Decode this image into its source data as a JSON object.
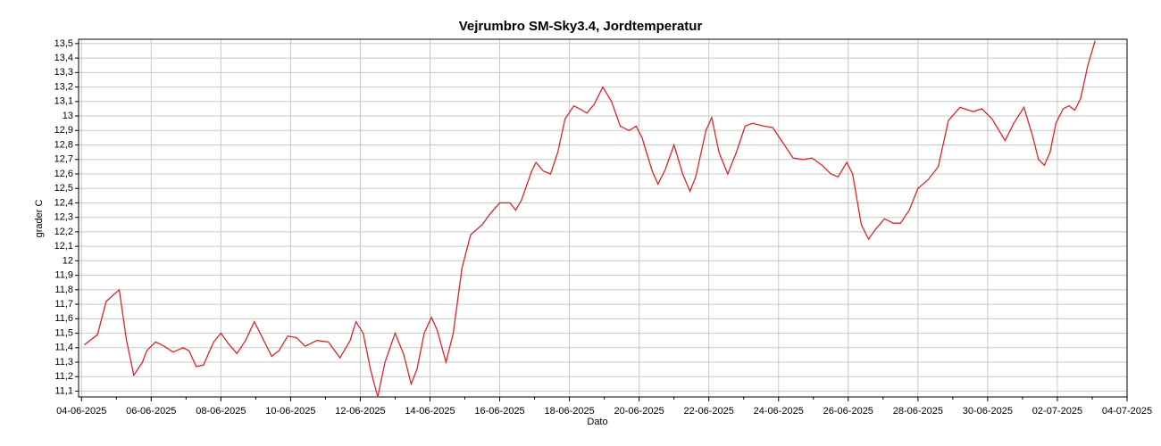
{
  "chart_data": {
    "type": "line",
    "title": "Vejrumbro SM-Sky3.4, Jordtemperatur",
    "x_label": "Dato",
    "y_label": "grader C",
    "x": [
      "2025-06-04T02:00",
      "2025-06-04T11:00",
      "2025-06-04T17:00",
      "2025-06-05T02:00",
      "2025-06-05T07:00",
      "2025-06-05T12:00",
      "2025-06-05T18:00",
      "2025-06-05T21:00",
      "2025-06-06T03:00",
      "2025-06-06T09:00",
      "2025-06-06T15:00",
      "2025-06-06T22:00",
      "2025-06-07T02:00",
      "2025-06-07T07:00",
      "2025-06-07T12:00",
      "2025-06-07T19:00",
      "2025-06-08T00:00",
      "2025-06-08T05:00",
      "2025-06-08T11:00",
      "2025-06-08T17:00",
      "2025-06-08T23:00",
      "2025-06-09T05:00",
      "2025-06-09T11:00",
      "2025-06-09T16:00",
      "2025-06-09T22:00",
      "2025-06-10T04:00",
      "2025-06-10T10:00",
      "2025-06-10T18:00",
      "2025-06-11T02:00",
      "2025-06-11T10:00",
      "2025-06-11T17:00",
      "2025-06-11T21:00",
      "2025-06-12T02:00",
      "2025-06-12T07:00",
      "2025-06-12T12:00",
      "2025-06-12T17:00",
      "2025-06-13T00:00",
      "2025-06-13T06:00",
      "2025-06-13T11:00",
      "2025-06-13T15:00",
      "2025-06-13T20:00",
      "2025-06-14T01:00",
      "2025-06-14T05:00",
      "2025-06-14T11:00",
      "2025-06-14T16:00",
      "2025-06-14T22:00",
      "2025-06-15T04:00",
      "2025-06-15T12:00",
      "2025-06-15T17:00",
      "2025-06-16T00:00",
      "2025-06-16T07:00",
      "2025-06-16T11:00",
      "2025-06-16T15:00",
      "2025-06-16T22:00",
      "2025-06-17T01:00",
      "2025-06-17T06:00",
      "2025-06-17T11:00",
      "2025-06-17T16:00",
      "2025-06-17T21:00",
      "2025-06-18T03:00",
      "2025-06-18T07:00",
      "2025-06-18T12:00",
      "2025-06-18T17:00",
      "2025-06-18T23:00",
      "2025-06-19T05:00",
      "2025-06-19T11:00",
      "2025-06-19T17:00",
      "2025-06-19T22:00",
      "2025-06-20T02:00",
      "2025-06-20T09:00",
      "2025-06-20T13:00",
      "2025-06-20T18:00",
      "2025-06-21T00:00",
      "2025-06-21T06:00",
      "2025-06-21T11:00",
      "2025-06-21T15:00",
      "2025-06-21T22:00",
      "2025-06-22T02:00",
      "2025-06-22T07:00",
      "2025-06-22T13:00",
      "2025-06-22T19:00",
      "2025-06-23T01:00",
      "2025-06-23T06:00",
      "2025-06-23T14:00",
      "2025-06-23T20:00",
      "2025-06-24T02:00",
      "2025-06-24T10:00",
      "2025-06-24T17:00",
      "2025-06-24T23:00",
      "2025-06-25T06:00",
      "2025-06-25T12:00",
      "2025-06-25T17:00",
      "2025-06-25T23:00",
      "2025-06-26T03:00",
      "2025-06-26T09:00",
      "2025-06-26T14:00",
      "2025-06-26T19:00",
      "2025-06-27T01:00",
      "2025-06-27T07:00",
      "2025-06-27T12:00",
      "2025-06-27T18:00",
      "2025-06-28T00:00",
      "2025-06-28T07:00",
      "2025-06-28T14:00",
      "2025-06-28T21:00",
      "2025-06-29T05:00",
      "2025-06-29T14:00",
      "2025-06-29T20:00",
      "2025-06-30T03:00",
      "2025-06-30T12:00",
      "2025-06-30T18:00",
      "2025-07-01T01:00",
      "2025-07-01T07:00",
      "2025-07-01T11:00",
      "2025-07-01T15:00",
      "2025-07-01T19:00",
      "2025-07-01T23:00",
      "2025-07-02T04:00",
      "2025-07-02T08:00",
      "2025-07-02T12:00",
      "2025-07-02T16:00",
      "2025-07-02T21:00",
      "2025-07-03T02:00"
    ],
    "series": [
      {
        "color": "#d9262b",
        "values": [
          11.42,
          11.49,
          11.72,
          11.8,
          11.45,
          11.21,
          11.3,
          11.38,
          11.44,
          11.41,
          11.37,
          11.4,
          11.38,
          11.27,
          11.28,
          11.44,
          11.5,
          11.43,
          11.36,
          11.45,
          11.58,
          11.46,
          11.34,
          11.38,
          11.48,
          11.47,
          11.41,
          11.45,
          11.44,
          11.33,
          11.45,
          11.58,
          11.5,
          11.25,
          11.06,
          11.3,
          11.5,
          11.35,
          11.15,
          11.25,
          11.5,
          11.61,
          11.52,
          11.3,
          11.5,
          11.95,
          12.18,
          12.25,
          12.32,
          12.4,
          12.4,
          12.35,
          12.42,
          12.62,
          12.68,
          12.62,
          12.6,
          12.75,
          12.98,
          13.07,
          13.05,
          13.02,
          13.08,
          13.2,
          13.1,
          12.93,
          12.9,
          12.93,
          12.85,
          12.62,
          12.53,
          12.63,
          12.8,
          12.6,
          12.48,
          12.58,
          12.9,
          12.99,
          12.75,
          12.6,
          12.75,
          12.93,
          12.95,
          12.93,
          12.92,
          12.83,
          12.71,
          12.7,
          12.71,
          12.66,
          12.6,
          12.58,
          12.68,
          12.6,
          12.25,
          12.15,
          12.22,
          12.29,
          12.26,
          12.26,
          12.35,
          12.5,
          12.56,
          12.65,
          12.97,
          13.06,
          13.03,
          13.05,
          12.98,
          12.83,
          12.95,
          13.06,
          12.86,
          12.7,
          12.66,
          12.75,
          12.95,
          13.05,
          13.07,
          13.04,
          13.12,
          13.35,
          13.52
        ]
      }
    ],
    "xlim": [
      "2025-06-03T22:00",
      "2025-07-04T00:00"
    ],
    "xticks": [
      {
        "value": "2025-06-04",
        "label": "04-06-2025"
      },
      {
        "value": "2025-06-06",
        "label": "06-06-2025"
      },
      {
        "value": "2025-06-08",
        "label": "08-06-2025"
      },
      {
        "value": "2025-06-10",
        "label": "10-06-2025"
      },
      {
        "value": "2025-06-12",
        "label": "12-06-2025"
      },
      {
        "value": "2025-06-14",
        "label": "14-06-2025"
      },
      {
        "value": "2025-06-16",
        "label": "16-06-2025"
      },
      {
        "value": "2025-06-18",
        "label": "18-06-2025"
      },
      {
        "value": "2025-06-20",
        "label": "20-06-2025"
      },
      {
        "value": "2025-06-22",
        "label": "22-06-2025"
      },
      {
        "value": "2025-06-24",
        "label": "24-06-2025"
      },
      {
        "value": "2025-06-26",
        "label": "26-06-2025"
      },
      {
        "value": "2025-06-28",
        "label": "28-06-2025"
      },
      {
        "value": "2025-06-30",
        "label": "30-06-2025"
      },
      {
        "value": "2025-07-02",
        "label": "02-07-2025"
      },
      {
        "value": "2025-07-04",
        "label": "04-07-2025"
      }
    ],
    "ylim": [
      11.06,
      13.53
    ],
    "yticks": [
      {
        "value": 11.1,
        "label": "11,1"
      },
      {
        "value": 11.2,
        "label": "11,2"
      },
      {
        "value": 11.3,
        "label": "11,3"
      },
      {
        "value": 11.4,
        "label": "11,4"
      },
      {
        "value": 11.5,
        "label": "11,5"
      },
      {
        "value": 11.6,
        "label": "11,6"
      },
      {
        "value": 11.7,
        "label": "11,7"
      },
      {
        "value": 11.8,
        "label": "11,8"
      },
      {
        "value": 11.9,
        "label": "11,9"
      },
      12,
      {
        "value": 12.1,
        "label": "12,1"
      },
      {
        "value": 12.2,
        "label": "12,2"
      },
      {
        "value": 12.3,
        "label": "12,3"
      },
      {
        "value": 12.4,
        "label": "12,4"
      },
      {
        "value": 12.5,
        "label": "12,5"
      },
      {
        "value": 12.6,
        "label": "12,6"
      },
      {
        "value": 12.7,
        "label": "12,7"
      },
      {
        "value": 12.8,
        "label": "12,8"
      },
      {
        "value": 12.9,
        "label": "12,9"
      },
      13,
      {
        "value": 13.1,
        "label": "13,1"
      },
      {
        "value": 13.2,
        "label": "13,2"
      },
      {
        "value": 13.3,
        "label": "13,3"
      },
      {
        "value": 13.4,
        "label": "13,4"
      },
      {
        "value": 13.5,
        "label": "13,5"
      }
    ],
    "grid": true
  }
}
